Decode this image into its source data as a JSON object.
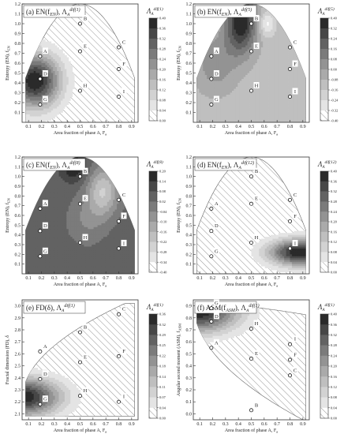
{
  "chart_data": [
    {
      "type": "contour",
      "title": "(a) EN(f",
      "title_sub": "EN",
      "title_mid": "), Λ",
      "title_lsub": "A",
      "title_sup": "dif(1)",
      "xlabel": "Area fraction of phase A, F",
      "xlabel_sub": "a",
      "ylabel": "Entropy (EN), f",
      "ylabel_sub": "EN",
      "xlim": [
        0.05,
        0.95
      ],
      "ylim": [
        0.0,
        1.2
      ],
      "x_ticks": [
        0.1,
        0.2,
        0.3,
        0.4,
        0.5,
        0.6,
        0.7,
        0.8,
        0.9
      ],
      "y_ticks": [
        0.1,
        0.2,
        0.3,
        0.4,
        0.5,
        0.6,
        0.7,
        0.8,
        0.9,
        1.0,
        1.1,
        1.2
      ],
      "y_tick_labels": [
        "0.1",
        "0.2",
        "0.3",
        "0.4",
        "0.5",
        "0.6",
        "0.7",
        "0.8",
        "0.9",
        "1.0",
        "1.1",
        "1.2"
      ],
      "colorbar": {
        "label": "Λ",
        "label_sub": "A",
        "label_sup": "dif(1)",
        "ticks": [
          "0.40",
          "0.36",
          "0.32",
          "0.28",
          "0.24",
          "0.20",
          "0.16",
          "0.12",
          "0.08",
          "0.04",
          "0.00"
        ]
      },
      "points": [
        {
          "label": "A",
          "x": 0.19,
          "y": 0.67
        },
        {
          "label": "B",
          "x": 0.5,
          "y": 1.0
        },
        {
          "label": "C",
          "x": 0.8,
          "y": 0.76
        },
        {
          "label": "D",
          "x": 0.19,
          "y": 0.44
        },
        {
          "label": "E",
          "x": 0.5,
          "y": 0.72
        },
        {
          "label": "F",
          "x": 0.8,
          "y": 0.54
        },
        {
          "label": "G",
          "x": 0.19,
          "y": 0.18
        },
        {
          "label": "H",
          "x": 0.5,
          "y": 0.32
        },
        {
          "label": "I",
          "x": 0.8,
          "y": 0.26
        }
      ]
    },
    {
      "type": "contour",
      "title": "(b) EN(f",
      "title_sub": "EN",
      "title_mid": "), Λ",
      "title_lsub": "A",
      "title_sup": "dif(5)",
      "xlabel": "Area fraction of phase A, F",
      "xlabel_sub": "a",
      "ylabel": "Entropy (EN), f",
      "ylabel_sub": "EN",
      "xlim": [
        0.05,
        0.95
      ],
      "ylim": [
        0.0,
        1.2
      ],
      "x_ticks": [
        0.1,
        0.2,
        0.3,
        0.4,
        0.5,
        0.6,
        0.7,
        0.8,
        0.9
      ],
      "y_ticks": [
        0.1,
        0.2,
        0.3,
        0.4,
        0.5,
        0.6,
        0.7,
        0.8,
        0.9,
        1.0,
        1.1,
        1.2
      ],
      "y_tick_labels": [
        "0.1",
        "0.2",
        "0.3",
        "0.4",
        "0.5",
        "0.6",
        "0.7",
        "0.8",
        "0.9",
        "1.0",
        "1.1",
        "1.2"
      ],
      "colorbar": {
        "label": "Λ",
        "label_sub": "A",
        "label_sup": "dif(5)",
        "ticks": [
          "0.40",
          "0.32",
          "0.24",
          "0.16",
          "0.08",
          "0.00",
          "-0.08",
          "-0.16",
          "-0.24",
          "-0.32",
          "-0.40"
        ]
      },
      "points": [
        {
          "label": "A",
          "x": 0.19,
          "y": 0.67
        },
        {
          "label": "B",
          "x": 0.5,
          "y": 1.0
        },
        {
          "label": "C",
          "x": 0.8,
          "y": 0.76
        },
        {
          "label": "D",
          "x": 0.19,
          "y": 0.44
        },
        {
          "label": "E",
          "x": 0.5,
          "y": 0.72
        },
        {
          "label": "F",
          "x": 0.8,
          "y": 0.54
        },
        {
          "label": "G",
          "x": 0.19,
          "y": 0.18
        },
        {
          "label": "H",
          "x": 0.5,
          "y": 0.32
        },
        {
          "label": "I",
          "x": 0.8,
          "y": 0.26
        }
      ]
    },
    {
      "type": "contour",
      "title": "(c) EN(f",
      "title_sub": "EN",
      "title_mid": "), Λ",
      "title_lsub": "A",
      "title_sup": "dif(8)",
      "xlabel": "Area fraction of phase A, F",
      "xlabel_sub": "a",
      "ylabel": "Entropy (EN), f",
      "ylabel_sub": "EN",
      "xlim": [
        0.05,
        0.95
      ],
      "ylim": [
        0.0,
        1.2
      ],
      "x_ticks": [
        0.1,
        0.2,
        0.3,
        0.4,
        0.5,
        0.6,
        0.7,
        0.8,
        0.9
      ],
      "y_ticks": [
        0.1,
        0.2,
        0.3,
        0.4,
        0.5,
        0.6,
        0.7,
        0.8,
        0.9,
        1.0,
        1.1,
        1.2
      ],
      "y_tick_labels": [
        "0.1",
        "0.2",
        "0.3",
        "0.4",
        "0.5",
        "0.6",
        "0.7",
        "0.8",
        "0.9",
        "1.0",
        "1.1",
        "1.2"
      ],
      "colorbar": {
        "label": "Λ",
        "label_sub": "A",
        "label_sup": "dif(8)",
        "ticks": [
          "0.20",
          "0.14",
          "0.08",
          "0.02",
          "-0.04",
          "-0.10",
          "-0.16",
          "-0.22",
          "-0.28",
          "-0.34",
          "-0.40"
        ]
      },
      "points": [
        {
          "label": "A",
          "x": 0.19,
          "y": 0.67
        },
        {
          "label": "B",
          "x": 0.5,
          "y": 1.0
        },
        {
          "label": "C",
          "x": 0.8,
          "y": 0.76
        },
        {
          "label": "D",
          "x": 0.19,
          "y": 0.44
        },
        {
          "label": "E",
          "x": 0.5,
          "y": 0.72
        },
        {
          "label": "F",
          "x": 0.8,
          "y": 0.54
        },
        {
          "label": "G",
          "x": 0.19,
          "y": 0.18
        },
        {
          "label": "H",
          "x": 0.5,
          "y": 0.32
        },
        {
          "label": "I",
          "x": 0.8,
          "y": 0.26
        }
      ]
    },
    {
      "type": "contour",
      "title": "(d) EN(f",
      "title_sub": "EN",
      "title_mid": "), Λ",
      "title_lsub": "A",
      "title_sup": "dif(12)",
      "xlabel": "Area fraction of phase A, F",
      "xlabel_sub": "a",
      "ylabel": "Entropy (EN), f",
      "ylabel_sub": "EN",
      "xlim": [
        0.05,
        0.95
      ],
      "ylim": [
        0.0,
        1.2
      ],
      "x_ticks": [
        0.1,
        0.2,
        0.3,
        0.4,
        0.5,
        0.6,
        0.7,
        0.8,
        0.9
      ],
      "y_ticks": [
        0.1,
        0.2,
        0.3,
        0.4,
        0.5,
        0.6,
        0.7,
        0.8,
        0.9,
        1.0,
        1.1,
        1.2
      ],
      "y_tick_labels": [
        "0.1",
        "0.2",
        "0.3",
        "0.4",
        "0.5",
        "0.6",
        "0.7",
        "0.8",
        "0.9",
        "1.0",
        "1.1",
        "1.2"
      ],
      "colorbar": {
        "label": "Λ",
        "label_sub": "A",
        "label_sup": "dif(12)",
        "ticks": [
          "0.40",
          "0.36",
          "0.32",
          "0.28",
          "0.24",
          "0.20",
          "0.16",
          "0.12",
          "0.08",
          "0.04",
          "0.00"
        ]
      },
      "points": [
        {
          "label": "A",
          "x": 0.19,
          "y": 0.67
        },
        {
          "label": "B",
          "x": 0.5,
          "y": 1.0
        },
        {
          "label": "C",
          "x": 0.8,
          "y": 0.76
        },
        {
          "label": "D",
          "x": 0.19,
          "y": 0.44
        },
        {
          "label": "E",
          "x": 0.5,
          "y": 0.72
        },
        {
          "label": "F",
          "x": 0.8,
          "y": 0.54
        },
        {
          "label": "G",
          "x": 0.19,
          "y": 0.18
        },
        {
          "label": "H",
          "x": 0.5,
          "y": 0.32
        },
        {
          "label": "I",
          "x": 0.8,
          "y": 0.26
        }
      ]
    },
    {
      "type": "contour",
      "title": "(e) FD(δ), Λ",
      "title_sub": "",
      "title_mid": "",
      "title_lsub": "A",
      "title_sup": "dif(1)",
      "xlabel": "Area fraction of phase A, F",
      "xlabel_sub": "a",
      "ylabel": "Fractal dimension (FD), δ",
      "ylabel_sub": "",
      "xlim": [
        0.05,
        0.95
      ],
      "ylim": [
        2.05,
        3.05
      ],
      "x_ticks": [
        0.1,
        0.2,
        0.3,
        0.4,
        0.5,
        0.6,
        0.7,
        0.8,
        0.9
      ],
      "y_ticks": [
        2.1,
        2.2,
        2.3,
        2.4,
        2.5,
        2.6,
        2.7,
        2.8,
        2.9,
        3.0
      ],
      "y_tick_labels": [
        "2.1",
        "2.2",
        "2.3",
        "2.4",
        "2.5",
        "2.6",
        "2.7",
        "2.8",
        "2.9",
        "3.0"
      ],
      "colorbar": {
        "label": "Λ",
        "label_sub": "A",
        "label_sup": "dif(1)",
        "ticks": [
          "0.36",
          "0.32",
          "0.29",
          "0.25",
          "0.22",
          "0.18",
          "0.14",
          "0.11",
          "0.07",
          "0.04",
          "0.00"
        ]
      },
      "points": [
        {
          "label": "A",
          "x": 0.19,
          "y": 2.62
        },
        {
          "label": "B",
          "x": 0.5,
          "y": 2.78
        },
        {
          "label": "C",
          "x": 0.8,
          "y": 2.93
        },
        {
          "label": "D",
          "x": 0.19,
          "y": 2.39
        },
        {
          "label": "E",
          "x": 0.5,
          "y": 2.53
        },
        {
          "label": "F",
          "x": 0.8,
          "y": 2.58
        },
        {
          "label": "G",
          "x": 0.19,
          "y": 2.18
        },
        {
          "label": "H",
          "x": 0.5,
          "y": 2.25
        },
        {
          "label": "I",
          "x": 0.8,
          "y": 2.2
        }
      ]
    },
    {
      "type": "contour",
      "title": "(f) ASM(f",
      "title_sub": "ASM",
      "title_mid": "), Λ",
      "title_lsub": "A",
      "title_sup": "dif(1)",
      "xlabel": "Area fraction of phase A, F",
      "xlabel_sub": "a",
      "ylabel": "Angular second moment (ASM), f",
      "ylabel_sub": "ASM",
      "xlim": [
        0.05,
        0.95
      ],
      "ylim": [
        -0.05,
        0.95
      ],
      "x_ticks": [
        0.1,
        0.2,
        0.3,
        0.4,
        0.5,
        0.6,
        0.7,
        0.8,
        0.9
      ],
      "y_ticks": [
        0.0,
        0.1,
        0.2,
        0.3,
        0.4,
        0.5,
        0.6,
        0.7,
        0.8,
        0.9
      ],
      "y_tick_labels": [
        "0.0",
        "0.1",
        "0.2",
        "0.3",
        "0.4",
        "0.5",
        "0.6",
        "0.7",
        "0.8",
        "0.9"
      ],
      "colorbar": {
        "label": "Λ",
        "label_sub": "A",
        "label_sup": "dif(1)",
        "ticks": [
          "0.40",
          "0.36",
          "0.32",
          "0.28",
          "0.24",
          "0.20",
          "0.16",
          "0.12",
          "0.08",
          "0.04",
          "0.00"
        ]
      },
      "points": [
        {
          "label": "G",
          "x": 0.19,
          "y": 0.88
        },
        {
          "label": "D",
          "x": 0.19,
          "y": 0.77
        },
        {
          "label": "H",
          "x": 0.5,
          "y": 0.71
        },
        {
          "label": "A",
          "x": 0.19,
          "y": 0.55
        },
        {
          "label": "E",
          "x": 0.5,
          "y": 0.46
        },
        {
          "label": "I",
          "x": 0.8,
          "y": 0.58
        },
        {
          "label": "F",
          "x": 0.8,
          "y": 0.45
        },
        {
          "label": "C",
          "x": 0.8,
          "y": 0.32
        },
        {
          "label": "B",
          "x": 0.5,
          "y": 0.03
        }
      ]
    }
  ]
}
